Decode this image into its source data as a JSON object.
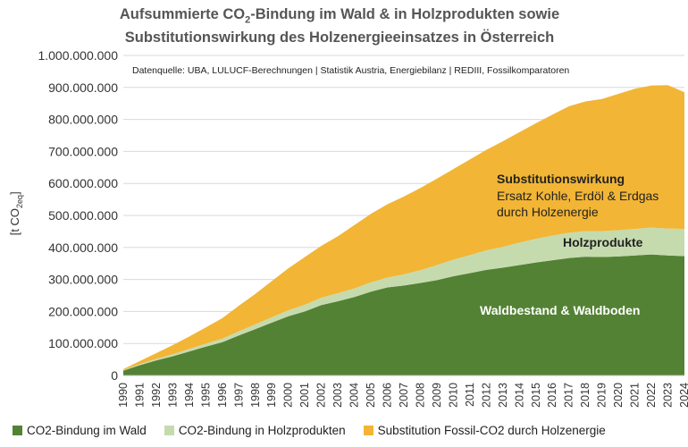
{
  "chart_data": {
    "type": "area",
    "title_line1_pre": "Aufsummierte CO",
    "title_line1_sub": "2",
    "title_line1_post": "-Bindung im Wald & in Holzprodukten sowie",
    "title_line2": "Substitutionswirkung des Holzenergieeinsatzes in Österreich",
    "source": "Datenquelle: UBA, LULUCF-Berechnungen | Statistik Austria, Energiebilanz | REDIII, Fossilkomparatoren",
    "ylabel_pre": "[t CO",
    "ylabel_sub": "2eq",
    "ylabel_post": "]",
    "ylim": [
      0,
      1000000000
    ],
    "y_ticks": [
      {
        "value": 0,
        "label": "0"
      },
      {
        "value": 100000000,
        "label": "100.000.000"
      },
      {
        "value": 200000000,
        "label": "200.000.000"
      },
      {
        "value": 300000000,
        "label": "300.000.000"
      },
      {
        "value": 400000000,
        "label": "400.000.000"
      },
      {
        "value": 500000000,
        "label": "500.000.000"
      },
      {
        "value": 600000000,
        "label": "600.000.000"
      },
      {
        "value": 700000000,
        "label": "700.000.000"
      },
      {
        "value": 800000000,
        "label": "800.000.000"
      },
      {
        "value": 900000000,
        "label": "900.000.000"
      },
      {
        "value": 1000000000,
        "label": "1.000.000.000"
      }
    ],
    "categories": [
      "1990",
      "1991",
      "1992",
      "1993",
      "1994",
      "1995",
      "1996",
      "1997",
      "1998",
      "1999",
      "2000",
      "2001",
      "2002",
      "2003",
      "2004",
      "2005",
      "2006",
      "2007",
      "2008",
      "2009",
      "2010",
      "2011",
      "2012",
      "2013",
      "2014",
      "2015",
      "2016",
      "2017",
      "2018",
      "2019",
      "2020",
      "2021",
      "2022",
      "2023",
      "2024"
    ],
    "series": [
      {
        "name": "CO2-Bindung im Wald",
        "color": "#548235",
        "values": [
          15000000,
          32000000,
          47000000,
          60000000,
          75000000,
          90000000,
          104000000,
          125000000,
          145000000,
          165000000,
          185000000,
          200000000,
          220000000,
          232000000,
          245000000,
          262000000,
          275000000,
          281000000,
          289000000,
          298000000,
          310000000,
          320000000,
          330000000,
          337000000,
          345000000,
          353000000,
          360000000,
          367000000,
          371000000,
          370000000,
          372000000,
          375000000,
          378000000,
          375000000,
          373000000
        ]
      },
      {
        "name": "CO2-Bindung in Holzprodukten",
        "color": "#c5dbae",
        "values": [
          2000000,
          3500000,
          5000000,
          6500000,
          8000000,
          9500000,
          11000000,
          13000000,
          15000000,
          17000000,
          19000000,
          21000000,
          23000000,
          25000000,
          27000000,
          29000000,
          31000000,
          35000000,
          40000000,
          47000000,
          52000000,
          56000000,
          61000000,
          65000000,
          70000000,
          74000000,
          77000000,
          79000000,
          80000000,
          81000000,
          82000000,
          83000000,
          84000000,
          84000000,
          85000000
        ]
      },
      {
        "name": "Substitution Fossil-CO2 durch Holzenergie",
        "color": "#f2b535",
        "values": [
          3000000,
          9500000,
          18000000,
          28500000,
          39000000,
          50500000,
          64000000,
          80000000,
          95000000,
          113000000,
          131000000,
          149000000,
          162000000,
          178000000,
          198000000,
          214000000,
          229000000,
          243000000,
          257000000,
          270000000,
          283000000,
          299000000,
          314000000,
          330000000,
          345000000,
          361000000,
          378000000,
          395000000,
          405000000,
          413000000,
          426000000,
          438000000,
          444000000,
          448000000,
          427000000
        ]
      }
    ],
    "annotations": [
      {
        "key": "substitution_title",
        "text": "Substitutionswirkung"
      },
      {
        "key": "substitution_l1",
        "text": "Ersatz Kohle, Erdöl & Erdgas"
      },
      {
        "key": "substitution_l2",
        "text": "durch Holzenergie"
      },
      {
        "key": "holzprodukte",
        "text": "Holzprodukte"
      },
      {
        "key": "wald",
        "text": "Waldbestand & Waldboden"
      }
    ],
    "legend_position": "bottom",
    "grid": true
  }
}
